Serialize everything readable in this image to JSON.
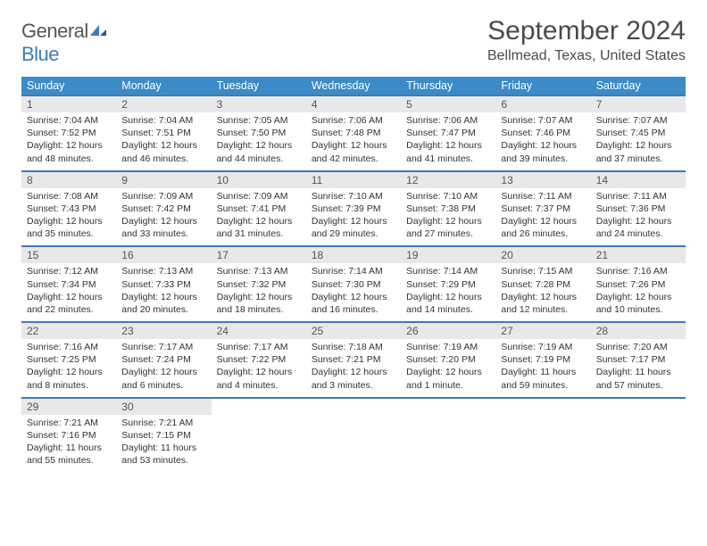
{
  "brand": {
    "name_part1": "General",
    "name_part2": "Blue"
  },
  "title": "September 2024",
  "location": "Bellmead, Texas, United States",
  "colors": {
    "header_bg": "#3b8bc9",
    "row_border": "#3b7bbf",
    "daynum_bg": "#e8e8e8",
    "text": "#333333",
    "brand_gray": "#555555",
    "brand_blue": "#3b7bbf"
  },
  "weekdays": [
    "Sunday",
    "Monday",
    "Tuesday",
    "Wednesday",
    "Thursday",
    "Friday",
    "Saturday"
  ],
  "weeks": [
    [
      {
        "n": "1",
        "sr": "7:04 AM",
        "ss": "7:52 PM",
        "dl": "12 hours and 48 minutes."
      },
      {
        "n": "2",
        "sr": "7:04 AM",
        "ss": "7:51 PM",
        "dl": "12 hours and 46 minutes."
      },
      {
        "n": "3",
        "sr": "7:05 AM",
        "ss": "7:50 PM",
        "dl": "12 hours and 44 minutes."
      },
      {
        "n": "4",
        "sr": "7:06 AM",
        "ss": "7:48 PM",
        "dl": "12 hours and 42 minutes."
      },
      {
        "n": "5",
        "sr": "7:06 AM",
        "ss": "7:47 PM",
        "dl": "12 hours and 41 minutes."
      },
      {
        "n": "6",
        "sr": "7:07 AM",
        "ss": "7:46 PM",
        "dl": "12 hours and 39 minutes."
      },
      {
        "n": "7",
        "sr": "7:07 AM",
        "ss": "7:45 PM",
        "dl": "12 hours and 37 minutes."
      }
    ],
    [
      {
        "n": "8",
        "sr": "7:08 AM",
        "ss": "7:43 PM",
        "dl": "12 hours and 35 minutes."
      },
      {
        "n": "9",
        "sr": "7:09 AM",
        "ss": "7:42 PM",
        "dl": "12 hours and 33 minutes."
      },
      {
        "n": "10",
        "sr": "7:09 AM",
        "ss": "7:41 PM",
        "dl": "12 hours and 31 minutes."
      },
      {
        "n": "11",
        "sr": "7:10 AM",
        "ss": "7:39 PM",
        "dl": "12 hours and 29 minutes."
      },
      {
        "n": "12",
        "sr": "7:10 AM",
        "ss": "7:38 PM",
        "dl": "12 hours and 27 minutes."
      },
      {
        "n": "13",
        "sr": "7:11 AM",
        "ss": "7:37 PM",
        "dl": "12 hours and 26 minutes."
      },
      {
        "n": "14",
        "sr": "7:11 AM",
        "ss": "7:36 PM",
        "dl": "12 hours and 24 minutes."
      }
    ],
    [
      {
        "n": "15",
        "sr": "7:12 AM",
        "ss": "7:34 PM",
        "dl": "12 hours and 22 minutes."
      },
      {
        "n": "16",
        "sr": "7:13 AM",
        "ss": "7:33 PM",
        "dl": "12 hours and 20 minutes."
      },
      {
        "n": "17",
        "sr": "7:13 AM",
        "ss": "7:32 PM",
        "dl": "12 hours and 18 minutes."
      },
      {
        "n": "18",
        "sr": "7:14 AM",
        "ss": "7:30 PM",
        "dl": "12 hours and 16 minutes."
      },
      {
        "n": "19",
        "sr": "7:14 AM",
        "ss": "7:29 PM",
        "dl": "12 hours and 14 minutes."
      },
      {
        "n": "20",
        "sr": "7:15 AM",
        "ss": "7:28 PM",
        "dl": "12 hours and 12 minutes."
      },
      {
        "n": "21",
        "sr": "7:16 AM",
        "ss": "7:26 PM",
        "dl": "12 hours and 10 minutes."
      }
    ],
    [
      {
        "n": "22",
        "sr": "7:16 AM",
        "ss": "7:25 PM",
        "dl": "12 hours and 8 minutes."
      },
      {
        "n": "23",
        "sr": "7:17 AM",
        "ss": "7:24 PM",
        "dl": "12 hours and 6 minutes."
      },
      {
        "n": "24",
        "sr": "7:17 AM",
        "ss": "7:22 PM",
        "dl": "12 hours and 4 minutes."
      },
      {
        "n": "25",
        "sr": "7:18 AM",
        "ss": "7:21 PM",
        "dl": "12 hours and 3 minutes."
      },
      {
        "n": "26",
        "sr": "7:19 AM",
        "ss": "7:20 PM",
        "dl": "12 hours and 1 minute."
      },
      {
        "n": "27",
        "sr": "7:19 AM",
        "ss": "7:19 PM",
        "dl": "11 hours and 59 minutes."
      },
      {
        "n": "28",
        "sr": "7:20 AM",
        "ss": "7:17 PM",
        "dl": "11 hours and 57 minutes."
      }
    ],
    [
      {
        "n": "29",
        "sr": "7:21 AM",
        "ss": "7:16 PM",
        "dl": "11 hours and 55 minutes."
      },
      {
        "n": "30",
        "sr": "7:21 AM",
        "ss": "7:15 PM",
        "dl": "11 hours and 53 minutes."
      },
      null,
      null,
      null,
      null,
      null
    ]
  ],
  "labels": {
    "sunrise": "Sunrise: ",
    "sunset": "Sunset: ",
    "daylight": "Daylight: "
  }
}
